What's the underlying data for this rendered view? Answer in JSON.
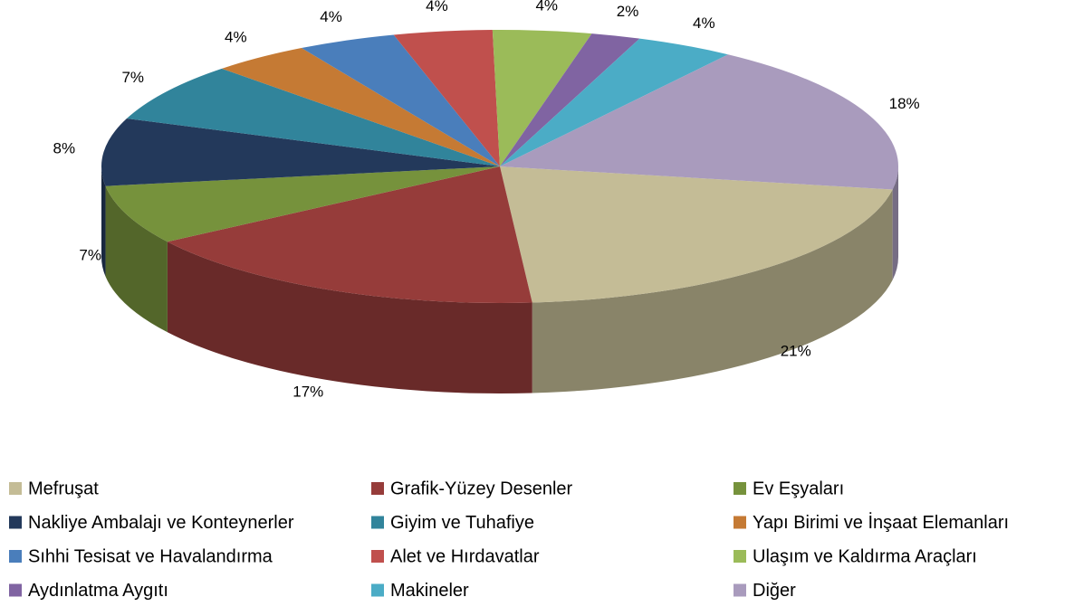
{
  "chart_data": {
    "type": "pie",
    "categories": [
      "Mefruşat",
      "Grafik-Yüzey Desenler",
      "Ev Eşyaları",
      "Nakliye Ambalajı ve Konteynerler",
      "Giyim ve Tuhafiye",
      "Yapı Birimi ve İnşaat Elemanları",
      "Sıhhi Tesisat ve Havalandırma",
      "Alet ve Hırdavatlar",
      "Ulaşım ve Kaldırma Araçları",
      "Aydınlatma Aygıtı",
      "Makineler",
      "Diğer"
    ],
    "values": [
      21,
      17,
      7,
      8,
      7,
      4,
      4,
      4,
      4,
      2,
      4,
      18
    ],
    "value_labels": [
      "21%",
      "17%",
      "7%",
      "8%",
      "7%",
      "4%",
      "4%",
      "4%",
      "4%",
      "2%",
      "4%",
      "18%"
    ],
    "colors": [
      "#c4bc96",
      "#963c3a",
      "#76923c",
      "#23395b",
      "#31849b",
      "#c57a34",
      "#4a7ebb",
      "#c0504d",
      "#9bbb59",
      "#8064a2",
      "#4bacc6",
      "#a99bbd"
    ],
    "legend": "bottom"
  }
}
